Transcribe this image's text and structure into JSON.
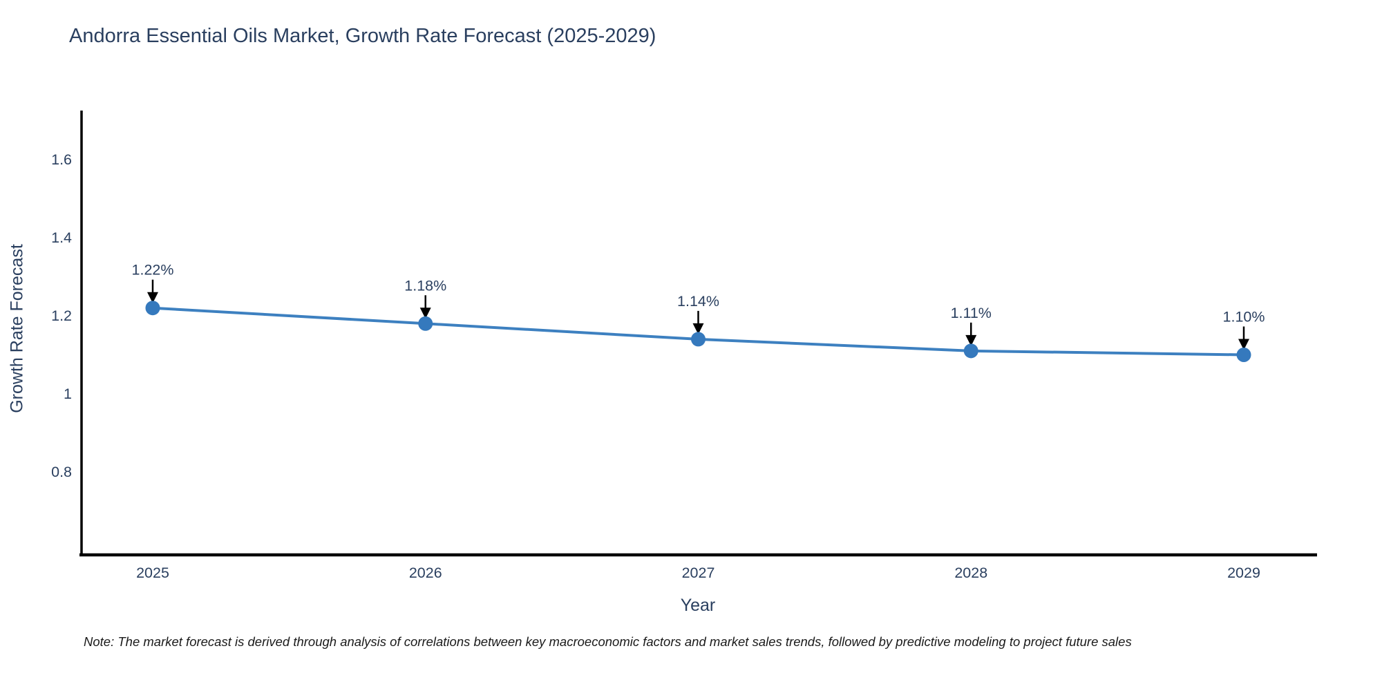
{
  "chart_data": {
    "type": "line",
    "title": "Andorra Essential Oils Market, Growth Rate Forecast (2025-2029)",
    "xlabel": "Year",
    "ylabel": "Growth Rate Forecast",
    "x": [
      2025,
      2026,
      2027,
      2028,
      2029
    ],
    "x_tick_labels": [
      "2025",
      "2026",
      "2027",
      "2028",
      "2029"
    ],
    "series": [
      {
        "name": "Growth Rate Forecast",
        "values": [
          1.22,
          1.18,
          1.14,
          1.11,
          1.1
        ]
      }
    ],
    "point_labels": [
      "1.22%",
      "1.18%",
      "1.14%",
      "1.11%",
      "1.10%"
    ],
    "yticks": [
      0.8,
      1,
      1.2,
      1.4,
      1.6
    ],
    "ytick_labels": [
      "0.8",
      "1",
      "1.2",
      "1.4",
      "1.6"
    ],
    "ylim": [
      0.58,
      1.73
    ],
    "grid": false,
    "legend_position": "none",
    "annotation_style": "value-label-with-down-arrow",
    "footnote": "Note: The market forecast is derived through analysis of correlations between key macroeconomic factors and market sales trends, followed by predictive modeling to project future sales",
    "colors": {
      "line": "#3d80c0",
      "marker": "#3579bd",
      "arrow": "#000000",
      "axis_line": "#000000",
      "text": "#2a3f5f",
      "annotation_text": "#2a3f5f",
      "footnote_text": "#1a1a1a",
      "background": "#ffffff"
    }
  }
}
